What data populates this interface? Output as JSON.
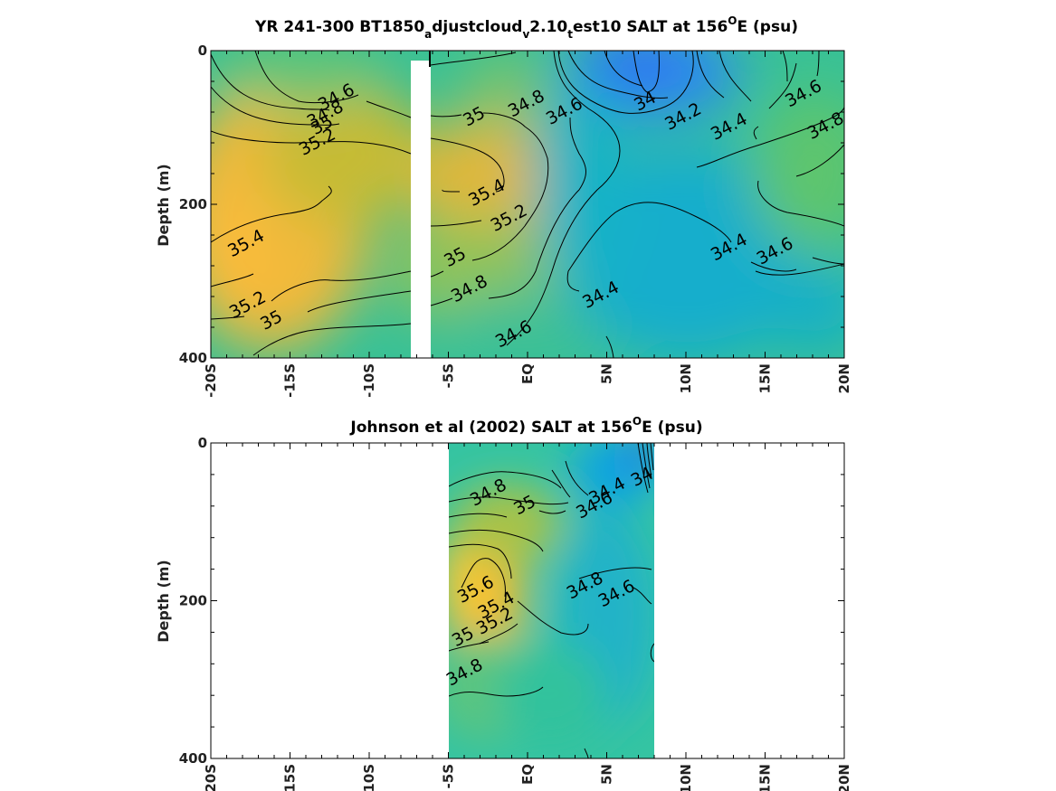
{
  "chart_data": [
    {
      "type": "heatmap",
      "title_parts": {
        "t1": "YR 241-300 BT1850",
        "s1": "a",
        "t2": "djustcloud",
        "s2": "v",
        "t3": "2.10",
        "s3": "t",
        "t4": "est10 SALT at 156",
        "sup": "O",
        "t5": "E (psu)"
      },
      "ylabel": "Depth (m)",
      "xlim": [
        -20,
        20
      ],
      "ylim": [
        400,
        0
      ],
      "x_ticks": [
        -20,
        -15,
        -10,
        -5,
        0,
        5,
        10,
        15,
        20
      ],
      "x_tick_labels": [
        "-20S",
        "-15S",
        "-10S",
        "-5S",
        "EQ",
        "5N",
        "10N",
        "15N",
        "20N"
      ],
      "y_tick_labels": [
        "0",
        "200",
        "400"
      ],
      "colormap": "parula",
      "grid": false,
      "data_gap_lat": [
        -7.5,
        -6.4
      ],
      "contour_labels": [
        {
          "text": "34.6",
          "lat": -12.1,
          "depth": 60
        },
        {
          "text": "34.8",
          "lat": -12.8,
          "depth": 82
        },
        {
          "text": "35",
          "lat": -13.0,
          "depth": 96
        },
        {
          "text": "35.2",
          "lat": -13.3,
          "depth": 118
        },
        {
          "text": "35.4",
          "lat": -17.8,
          "depth": 250
        },
        {
          "text": "35.2",
          "lat": -17.7,
          "depth": 330
        },
        {
          "text": "35",
          "lat": -16.2,
          "depth": 350
        },
        {
          "text": "35",
          "lat": -3.4,
          "depth": 85
        },
        {
          "text": "34.8",
          "lat": -0.1,
          "depth": 68
        },
        {
          "text": "34.6",
          "lat": 2.3,
          "depth": 78
        },
        {
          "text": "35.4",
          "lat": -2.6,
          "depth": 184
        },
        {
          "text": "35.2",
          "lat": -1.2,
          "depth": 217
        },
        {
          "text": "35",
          "lat": -4.6,
          "depth": 268
        },
        {
          "text": "34.8",
          "lat": -3.7,
          "depth": 309
        },
        {
          "text": "34.6",
          "lat": -0.9,
          "depth": 368
        },
        {
          "text": "34",
          "lat": 7.4,
          "depth": 65
        },
        {
          "text": "34.2",
          "lat": 9.8,
          "depth": 85
        },
        {
          "text": "34.4",
          "lat": 12.7,
          "depth": 98
        },
        {
          "text": "34.6",
          "lat": 17.4,
          "depth": 55
        },
        {
          "text": "34.8",
          "lat": 18.8,
          "depth": 97
        },
        {
          "text": "34.6",
          "lat": 15.6,
          "depth": 260
        },
        {
          "text": "34.4",
          "lat": 12.7,
          "depth": 255
        },
        {
          "text": "34.4",
          "lat": 4.6,
          "depth": 317
        }
      ]
    },
    {
      "type": "heatmap",
      "title_parts": {
        "t1": "Johnson et al (2002) SALT at 156",
        "sup": "O",
        "t2": "E (psu)"
      },
      "ylabel": "Depth (m)",
      "xlim": [
        -20,
        20
      ],
      "ylim": [
        400,
        0
      ],
      "x_ticks": [
        -20,
        -15,
        -10,
        -5,
        0,
        5,
        10,
        15,
        20
      ],
      "x_tick_labels": [
        "-20S",
        "-15S",
        "-10S",
        "-5S",
        "EQ",
        "5N",
        "10N",
        "15N",
        "20N"
      ],
      "y_tick_labels": [
        "0",
        "200",
        "400"
      ],
      "colormap": "parula",
      "grid": false,
      "data_lat_range": [
        -5,
        8
      ],
      "contour_labels": [
        {
          "text": "34.8",
          "lat": -2.5,
          "depth": 62
        },
        {
          "text": "35",
          "lat": -0.2,
          "depth": 78
        },
        {
          "text": "34.4",
          "lat": 5.0,
          "depth": 60
        },
        {
          "text": "34.6",
          "lat": 4.2,
          "depth": 78
        },
        {
          "text": "34",
          "lat": 7.2,
          "depth": 42
        },
        {
          "text": "35.6",
          "lat": -3.3,
          "depth": 185
        },
        {
          "text": "35.4",
          "lat": -2.0,
          "depth": 205
        },
        {
          "text": "35.2",
          "lat": -2.1,
          "depth": 225
        },
        {
          "text": "35",
          "lat": -4.1,
          "depth": 245
        },
        {
          "text": "34.8",
          "lat": 3.6,
          "depth": 180
        },
        {
          "text": "34.6",
          "lat": 5.6,
          "depth": 190
        },
        {
          "text": "34.8",
          "lat": -4.0,
          "depth": 290
        }
      ]
    }
  ]
}
